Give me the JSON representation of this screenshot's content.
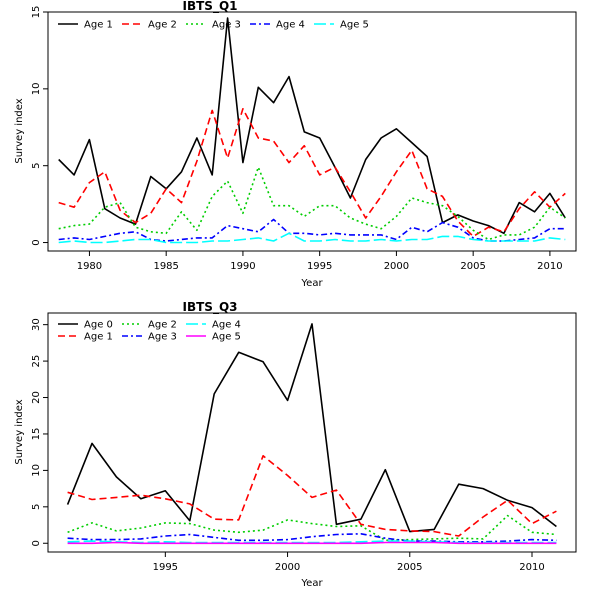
{
  "chart_data": [
    {
      "type": "line",
      "title": "IBTS_Q1",
      "xlabel": "Year",
      "ylabel": "Survey index",
      "xlim": [
        1977.3,
        2011.7
      ],
      "ylim": [
        -0.55,
        15
      ],
      "xticks": [
        1980,
        1985,
        1990,
        1995,
        2000,
        2005,
        2010
      ],
      "yticks": [
        0,
        5,
        10,
        15
      ],
      "legend_position": "top-left",
      "x": [
        1978,
        1979,
        1980,
        1981,
        1982,
        1983,
        1984,
        1985,
        1986,
        1987,
        1988,
        1989,
        1990,
        1991,
        1992,
        1993,
        1994,
        1995,
        1996,
        1997,
        1998,
        1999,
        2000,
        2001,
        2002,
        2003,
        2004,
        2005,
        2006,
        2007,
        2008,
        2009,
        2010,
        2011
      ],
      "series": [
        {
          "name": "Age 1",
          "color": "#000000",
          "dash": "",
          "values": [
            5.4,
            4.4,
            6.7,
            2.2,
            1.6,
            1.2,
            4.3,
            3.5,
            4.6,
            6.8,
            4.4,
            14.6,
            5.2,
            10.1,
            9.1,
            10.8,
            7.2,
            6.8,
            4.9,
            2.9,
            5.4,
            6.8,
            7.4,
            6.5,
            5.6,
            1.3,
            1.8,
            1.4,
            1.1,
            0.6,
            2.6,
            2.0,
            3.2,
            1.6
          ]
        },
        {
          "name": "Age 2",
          "color": "#FF0000",
          "dash": "7,4",
          "values": [
            2.6,
            2.3,
            3.9,
            4.6,
            2.1,
            1.3,
            1.9,
            3.5,
            2.6,
            5.3,
            8.6,
            5.5,
            8.7,
            6.8,
            6.6,
            5.2,
            6.3,
            4.4,
            4.9,
            3.3,
            1.6,
            3.0,
            4.6,
            6.0,
            3.5,
            3.0,
            1.4,
            0.4,
            1.0,
            0.7,
            2.2,
            3.3,
            2.3,
            3.2
          ]
        },
        {
          "name": "Age 3",
          "color": "#00CD00",
          "dash": "2,3",
          "values": [
            0.9,
            1.1,
            1.2,
            2.3,
            2.6,
            1.0,
            0.7,
            0.6,
            2.0,
            0.8,
            3.0,
            4.0,
            1.9,
            4.9,
            2.4,
            2.4,
            1.7,
            2.4,
            2.4,
            1.6,
            1.2,
            0.9,
            1.7,
            2.9,
            2.6,
            2.4,
            1.7,
            0.8,
            0.2,
            0.5,
            0.5,
            1.0,
            2.3,
            1.6
          ]
        },
        {
          "name": "Age 4",
          "color": "#0000FF",
          "dash": "6,3,2,3",
          "values": [
            0.2,
            0.3,
            0.2,
            0.4,
            0.6,
            0.7,
            0.2,
            0.1,
            0.2,
            0.3,
            0.3,
            1.1,
            0.9,
            0.7,
            1.5,
            0.6,
            0.6,
            0.5,
            0.6,
            0.5,
            0.5,
            0.5,
            0.2,
            1.0,
            0.7,
            1.3,
            1.0,
            0.3,
            0.1,
            0.1,
            0.2,
            0.3,
            0.9,
            0.9
          ]
        },
        {
          "name": "Age 5",
          "color": "#00FFFF",
          "dash": "12,4",
          "values": [
            0.0,
            0.1,
            0.0,
            0.0,
            0.1,
            0.2,
            0.2,
            0.0,
            0.0,
            0.0,
            0.1,
            0.1,
            0.2,
            0.3,
            0.1,
            0.6,
            0.1,
            0.1,
            0.2,
            0.1,
            0.1,
            0.2,
            0.1,
            0.2,
            0.2,
            0.4,
            0.4,
            0.2,
            0.1,
            0.1,
            0.1,
            0.1,
            0.3,
            0.2
          ]
        }
      ]
    },
    {
      "type": "line",
      "title": "IBTS_Q3",
      "xlabel": "Year",
      "ylabel": "Survey index",
      "xlim": [
        1990.2,
        2011.8
      ],
      "ylim": [
        -1.2,
        31.6
      ],
      "xticks": [
        1995,
        2000,
        2005,
        2010
      ],
      "yticks": [
        0,
        5,
        10,
        15,
        20,
        25,
        30
      ],
      "legend_position": "top-left",
      "x": [
        1991,
        1992,
        1993,
        1994,
        1995,
        1996,
        1997,
        1998,
        1999,
        2000,
        2001,
        2002,
        2003,
        2004,
        2005,
        2006,
        2007,
        2008,
        2009,
        2010,
        2011
      ],
      "series": [
        {
          "name": "Age 0",
          "color": "#000000",
          "dash": "",
          "values": [
            5.3,
            13.7,
            9.1,
            6.1,
            7.2,
            3.1,
            20.5,
            26.2,
            24.9,
            19.6,
            30.1,
            2.6,
            3.3,
            10.1,
            1.6,
            1.9,
            8.1,
            7.5,
            5.9,
            4.9,
            2.3
          ]
        },
        {
          "name": "Age 1",
          "color": "#FF0000",
          "dash": "7,4",
          "values": [
            7.0,
            6.0,
            6.3,
            6.6,
            6.1,
            5.4,
            3.3,
            3.2,
            12.0,
            9.3,
            6.3,
            7.3,
            2.6,
            1.9,
            1.7,
            1.6,
            1.0,
            3.6,
            5.9,
            2.7,
            4.4
          ]
        },
        {
          "name": "Age 2",
          "color": "#00CD00",
          "dash": "2,3",
          "values": [
            1.5,
            2.8,
            1.7,
            2.1,
            2.8,
            2.7,
            1.8,
            1.5,
            1.8,
            3.2,
            2.7,
            2.3,
            2.4,
            0.4,
            0.5,
            0.6,
            0.7,
            0.6,
            3.8,
            1.5,
            1.2
          ]
        },
        {
          "name": "Age 3",
          "color": "#0000FF",
          "dash": "6,3,2,3",
          "values": [
            0.7,
            0.5,
            0.5,
            0.6,
            1.0,
            1.2,
            0.8,
            0.4,
            0.4,
            0.5,
            0.9,
            1.2,
            1.3,
            0.7,
            0.3,
            0.3,
            0.2,
            0.2,
            0.3,
            0.5,
            0.4
          ]
        },
        {
          "name": "Age 4",
          "color": "#00FFFF",
          "dash": "12,4",
          "values": [
            0.2,
            0.3,
            0.2,
            0.1,
            0.2,
            0.1,
            0.1,
            0.1,
            0.1,
            0.1,
            0.1,
            0.1,
            0.2,
            0.3,
            0.3,
            0.2,
            0.1,
            0.1,
            0.1,
            0.1,
            0.1
          ]
        },
        {
          "name": "Age 5",
          "color": "#FF00FF",
          "dash": "",
          "values": [
            0.0,
            0.0,
            0.1,
            0.0,
            0.0,
            0.0,
            0.0,
            0.0,
            0.0,
            0.0,
            0.0,
            0.0,
            0.0,
            0.1,
            0.1,
            0.1,
            0.0,
            0.0,
            0.0,
            0.0,
            0.0
          ]
        }
      ]
    }
  ]
}
